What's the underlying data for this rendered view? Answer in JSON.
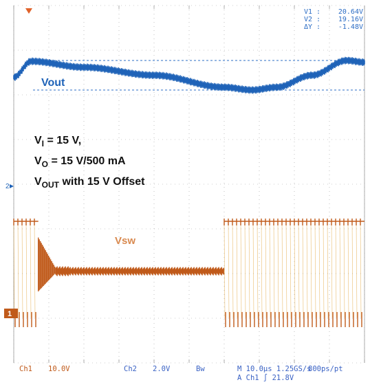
{
  "colors": {
    "background": "#ffffff",
    "grid": "#9a9a9a",
    "ch1": "#c05a1a",
    "ch1_alt": "#e0a030",
    "ch2": "#1f63b8",
    "cursor": "#2b6cc4",
    "readout_ch2": "#3a62c4"
  },
  "chart_data": {
    "type": "line",
    "title": "",
    "xlabel": "",
    "ylabel": "",
    "time_per_div_us": 10.0,
    "x_range_us": [
      0,
      100
    ],
    "series": [
      {
        "name": "Vout",
        "channel": "Ch2",
        "volts_per_div": 2.0,
        "x_us": [
          0,
          5,
          20,
          40,
          60,
          68,
          75,
          85,
          95,
          100
        ],
        "y_v": [
          19.8,
          20.6,
          20.3,
          19.9,
          19.3,
          19.16,
          19.3,
          19.9,
          20.64,
          20.55
        ]
      },
      {
        "name": "Vsw",
        "channel": "Ch1",
        "volts_per_div": 10.0,
        "description_points_x_us": [
          0,
          7,
          7,
          12,
          20,
          60,
          60,
          100
        ],
        "high_v": 21.8,
        "mid_v": 10.5,
        "low_v": 0,
        "phases": [
          {
            "start_us": 0,
            "end_us": 7,
            "mode": "switching"
          },
          {
            "start_us": 7,
            "end_us": 12,
            "mode": "ringing"
          },
          {
            "start_us": 12,
            "end_us": 60,
            "mode": "flat"
          },
          {
            "start_us": 60,
            "end_us": 100,
            "mode": "switching"
          }
        ]
      }
    ]
  },
  "labels": {
    "top_trigger_marker": "▼",
    "vout": "Vout",
    "vsw": "Vsw",
    "ch2_marker": "2",
    "ch1_marker": "1"
  },
  "cursor": {
    "v1_label": "V1 :",
    "v1_value": "20.64V",
    "v2_label": "V2 :",
    "v2_value": "19.16V",
    "dv_label": "ΔY :",
    "dv_value": "-1.48V"
  },
  "note": {
    "line1_prefix": "V",
    "line1_sub": "I",
    "line1_rest": " = 15 V,",
    "line2_prefix": "V",
    "line2_sub": "O",
    "line2_rest": " = 15 V/500 mA",
    "line3_prefix": "V",
    "line3_sub": "OUT",
    "line3_rest": " with 15 V Offset"
  },
  "readout": {
    "ch1": "Ch1",
    "ch1_scale": "10.0V",
    "ch2": "Ch2",
    "ch2_scale": "2.0V",
    "bw": "Bw",
    "timebase": "M 10.0µs 1.25GS/s",
    "resolution": "800ps/pt",
    "trigger": "A Ch1 ∫ 21.8V"
  }
}
